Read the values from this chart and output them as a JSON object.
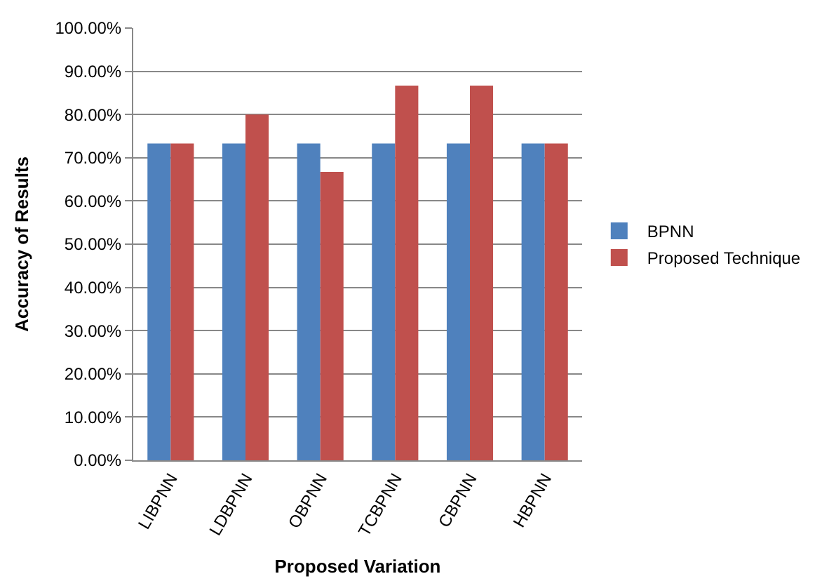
{
  "chart_data": {
    "type": "bar",
    "xlabel": "Proposed Variation",
    "ylabel": "Accuracy of Results",
    "categories": [
      "LIBPNN",
      "LDBPNN",
      "OBPNN",
      "TCBPNN",
      "CBPNN",
      "HBPNN"
    ],
    "series": [
      {
        "name": "BPNN",
        "color": "#4f81bd",
        "values": [
          73.3,
          73.3,
          73.3,
          73.3,
          73.3,
          73.3
        ]
      },
      {
        "name": "Proposed Technique",
        "color": "#c0504d",
        "values": [
          73.3,
          80,
          66.7,
          86.7,
          86.7,
          73.3
        ]
      }
    ],
    "ylim": [
      0,
      100
    ],
    "yticks": [
      {
        "value": 0,
        "label": "0.00%"
      },
      {
        "value": 10,
        "label": "10.00%"
      },
      {
        "value": 20,
        "label": "20.00%"
      },
      {
        "value": 30,
        "label": "30.00%"
      },
      {
        "value": 40,
        "label": "40.00%"
      },
      {
        "value": 50,
        "label": "50.00%"
      },
      {
        "value": 60,
        "label": "60.00%"
      },
      {
        "value": 70,
        "label": "70.00%"
      },
      {
        "value": 80,
        "label": "80.00%"
      },
      {
        "value": 90,
        "label": "90.00%"
      },
      {
        "value": 100,
        "label": "100.00%"
      }
    ],
    "grid": "y",
    "legend": "right"
  }
}
